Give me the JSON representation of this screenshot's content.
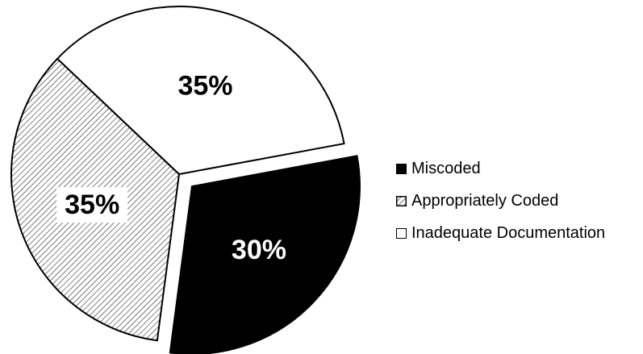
{
  "chart_data": {
    "type": "pie",
    "title": "",
    "slices": [
      {
        "label": "Miscoded",
        "value": 30,
        "display": "30%",
        "fill": "#000000",
        "text_color": "#ffffff",
        "pattern": "solid",
        "exploded": true
      },
      {
        "label": "Appropriately Coded",
        "value": 35,
        "display": "35%",
        "fill": "#ffffff",
        "text_color": "#000000",
        "pattern": "diagonal-hatch",
        "exploded": false
      },
      {
        "label": "Inadequate Documentation",
        "value": 35,
        "display": "35%",
        "fill": "#ffffff",
        "text_color": "#000000",
        "pattern": "none",
        "exploded": false
      }
    ],
    "legend_position": "right"
  }
}
